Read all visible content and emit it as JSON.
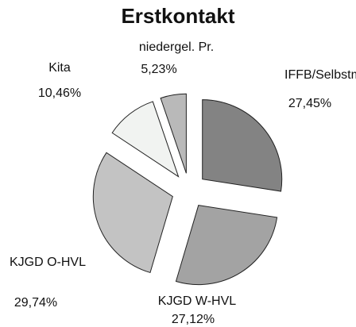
{
  "chart_data": {
    "type": "pie",
    "title": "Erstkontakt",
    "categories": [
      "IFFB/Selbstmelder",
      "KJGD W-HVL",
      "KJGD O-HVL",
      "Kita",
      "niedergel. Pr."
    ],
    "values": [
      27.45,
      27.12,
      29.74,
      10.46,
      5.23
    ],
    "value_labels": [
      "27,45%",
      "27,12%",
      "29,74%",
      "10,46%",
      "5,23%"
    ],
    "colors": [
      "#838383",
      "#a3a3a3",
      "#c3c3c3",
      "#f1f3f1",
      "#b9b9b9"
    ]
  }
}
